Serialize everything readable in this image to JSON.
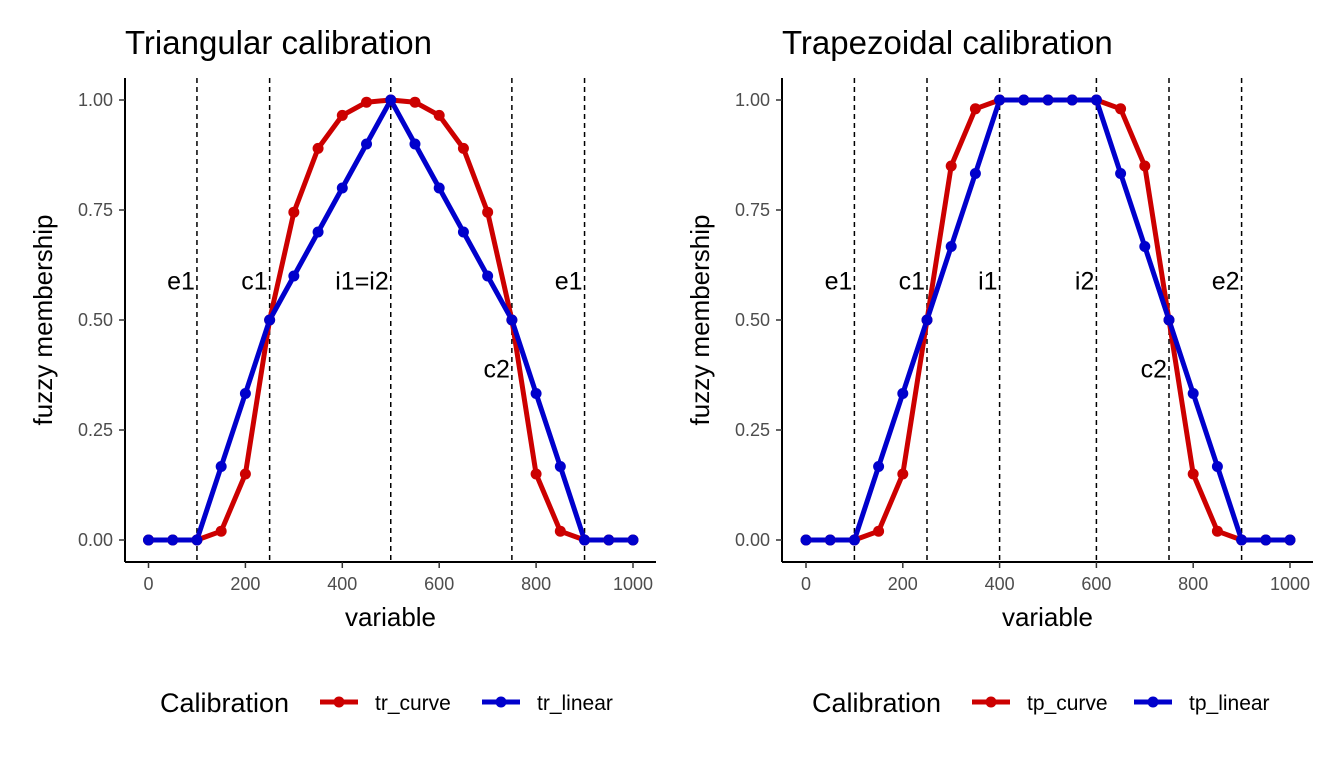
{
  "chart_data": [
    {
      "type": "line",
      "title": "Triangular calibration",
      "xlabel": "variable",
      "ylabel": "fuzzy membership",
      "xlim": [
        0,
        1000
      ],
      "ylim": [
        0,
        1
      ],
      "xticks": [
        "0",
        "200",
        "400",
        "600",
        "800",
        "1000"
      ],
      "yticks": [
        "0.00",
        "0.25",
        "0.50",
        "0.75",
        "1.00"
      ],
      "grid": false,
      "legend_position": "bottom",
      "legend_title": "Calibration",
      "x": [
        0,
        50,
        100,
        150,
        200,
        250,
        300,
        350,
        400,
        450,
        500,
        550,
        600,
        650,
        700,
        750,
        800,
        850,
        900,
        950,
        1000
      ],
      "series": [
        {
          "name": "tr_curve",
          "color": "#cc0000",
          "values": [
            0,
            0,
            0,
            0.02,
            0.15,
            0.5,
            0.745,
            0.89,
            0.965,
            0.995,
            1,
            0.995,
            0.965,
            0.89,
            0.745,
            0.5,
            0.15,
            0.02,
            0,
            0,
            0
          ]
        },
        {
          "name": "tr_linear",
          "color": "#0000cc",
          "values": [
            0,
            0,
            0,
            0.167,
            0.333,
            0.5,
            0.6,
            0.7,
            0.8,
            0.9,
            1,
            0.9,
            0.8,
            0.7,
            0.6,
            0.5,
            0.333,
            0.167,
            0,
            0,
            0
          ]
        }
      ],
      "vlines": [
        100,
        250,
        500,
        750,
        900
      ],
      "annotations": [
        {
          "text": "e1",
          "x": 100,
          "y": 0.59,
          "anchor": "end"
        },
        {
          "text": "c1",
          "x": 250,
          "y": 0.59,
          "anchor": "end"
        },
        {
          "text": "i1=i2",
          "x": 500,
          "y": 0.59,
          "anchor": "end"
        },
        {
          "text": "e1",
          "x": 900,
          "y": 0.59,
          "anchor": "end"
        },
        {
          "text": "c2",
          "x": 750,
          "y": 0.39,
          "anchor": "end"
        }
      ]
    },
    {
      "type": "line",
      "title": "Trapezoidal calibration",
      "xlabel": "variable",
      "ylabel": "fuzzy membership",
      "xlim": [
        0,
        1000
      ],
      "ylim": [
        0,
        1
      ],
      "xticks": [
        "0",
        "200",
        "400",
        "600",
        "800",
        "1000"
      ],
      "yticks": [
        "0.00",
        "0.25",
        "0.50",
        "0.75",
        "1.00"
      ],
      "grid": false,
      "legend_position": "bottom",
      "legend_title": "Calibration",
      "x": [
        0,
        50,
        100,
        150,
        200,
        250,
        300,
        350,
        400,
        450,
        500,
        550,
        600,
        650,
        700,
        750,
        800,
        850,
        900,
        950,
        1000
      ],
      "series": [
        {
          "name": "tp_curve",
          "color": "#cc0000",
          "values": [
            0,
            0,
            0,
            0.02,
            0.15,
            0.5,
            0.85,
            0.98,
            1,
            1,
            1,
            1,
            1,
            0.98,
            0.85,
            0.5,
            0.15,
            0.02,
            0,
            0,
            0
          ]
        },
        {
          "name": "tp_linear",
          "color": "#0000cc",
          "values": [
            0,
            0,
            0,
            0.167,
            0.333,
            0.5,
            0.667,
            0.833,
            1,
            1,
            1,
            1,
            1,
            0.833,
            0.667,
            0.5,
            0.333,
            0.167,
            0,
            0,
            0
          ]
        }
      ],
      "vlines": [
        100,
        250,
        400,
        600,
        750,
        900
      ],
      "annotations": [
        {
          "text": "e1",
          "x": 100,
          "y": 0.59,
          "anchor": "end"
        },
        {
          "text": "c1",
          "x": 250,
          "y": 0.59,
          "anchor": "end"
        },
        {
          "text": "i1",
          "x": 400,
          "y": 0.59,
          "anchor": "end"
        },
        {
          "text": "i2",
          "x": 600,
          "y": 0.59,
          "anchor": "end"
        },
        {
          "text": "e2",
          "x": 900,
          "y": 0.59,
          "anchor": "end"
        },
        {
          "text": "c2",
          "x": 750,
          "y": 0.39,
          "anchor": "end"
        }
      ]
    }
  ]
}
